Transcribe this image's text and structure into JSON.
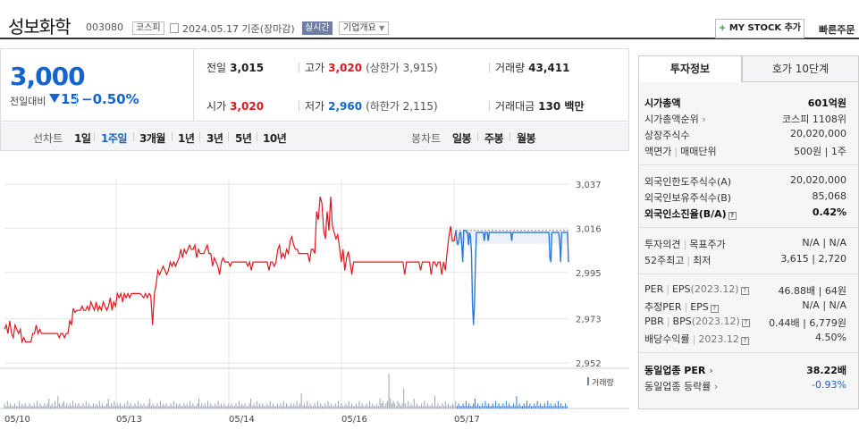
{
  "header": {
    "stock_name": "성보화학",
    "stock_code": "003080",
    "market": "코스피",
    "date": "2024.05.17",
    "date_suffix": "기준(장마감)",
    "realtime": "실시간",
    "corp_info": "기업개요",
    "my_stock": "MY STOCK 추가",
    "quick_order": "빠른주문"
  },
  "price": {
    "current": "3,000",
    "change_label": "전일대비",
    "change": "15",
    "change_pct": "−0.50%",
    "color_down": "#1464ce",
    "color_up": "#e0171f"
  },
  "quotes": {
    "prev_close_label": "전일",
    "prev_close": "3,015",
    "high_label": "고가",
    "high": "3,020",
    "upper_limit": "(상한가 3,915)",
    "volume_label": "거래량",
    "volume": "43,411",
    "open_label": "시가",
    "open": "3,020",
    "low_label": "저가",
    "low": "2,960",
    "lower_limit": "(하한가 2,115)",
    "amount_label": "거래대금",
    "amount": "130 백만"
  },
  "toolbar": {
    "line_label": "선차트",
    "line_items": [
      "1일",
      "1주일",
      "3개월",
      "1년",
      "3년",
      "5년",
      "10년"
    ],
    "active_index": 1,
    "candle_label": "봉차트",
    "candle_items": [
      "일봉",
      "주봉",
      "월봉"
    ]
  },
  "chart_data": {
    "type": "line",
    "title": "",
    "x_ticks": [
      "05/10",
      "05/13",
      "05/14",
      "05/16",
      "05/17"
    ],
    "y_ticks": [
      3037,
      3016,
      2995,
      2973,
      2952
    ],
    "ylim": [
      2952,
      3037
    ],
    "volume_label": "거래량",
    "series": [
      {
        "color": "#e0171f",
        "values": [
          2968,
          2970,
          2966,
          2972,
          2966,
          2964,
          2970,
          2968,
          2966,
          2968,
          2962,
          2964,
          2962,
          2962,
          2962,
          2962,
          2966,
          2966,
          2970,
          2966,
          2968,
          2966,
          2966,
          2966,
          2966,
          2966,
          2966,
          2966,
          2966,
          2966,
          2966,
          2964,
          2966,
          2966,
          2964,
          2966,
          2966,
          2972,
          2970,
          2978,
          2976,
          2977,
          2977,
          2977,
          2979,
          2977,
          2977,
          2979,
          2977,
          2981,
          2979,
          2977,
          2981,
          2977,
          2979,
          2977,
          2981,
          2979,
          2977,
          2979,
          2983,
          2977,
          2981,
          2979,
          2985,
          2983,
          2985,
          2981,
          2985,
          2983,
          2985,
          2983,
          2985,
          2985,
          2985,
          2985,
          2985,
          2985,
          2984,
          2983,
          2985,
          2983,
          2985,
          2984,
          2970,
          2985,
          2989,
          2996,
          2994,
          2996,
          2998,
          2996,
          2994,
          2996,
          3000,
          2998,
          3000,
          2998,
          3000,
          3002,
          3006,
          3002,
          3006,
          3004,
          3006,
          3008,
          3006,
          3006,
          3008,
          3002,
          3006,
          3004,
          3004,
          3004,
          3006,
          3008,
          3004,
          3004,
          2998,
          3002,
          3000,
          2998,
          2994,
          3000,
          3002,
          3000,
          3000,
          3000,
          2998,
          3000,
          3000,
          3000,
          3000,
          3000,
          3000,
          3000,
          3000,
          3000,
          2998,
          3000,
          2996,
          3000,
          3000,
          3000,
          3000,
          3000,
          3000,
          3000,
          3000,
          3000,
          2996,
          3000,
          3000,
          2998,
          3000,
          3006,
          3008,
          3002,
          3004,
          3002,
          3006,
          3004,
          3010,
          3012,
          3008,
          3006,
          3006,
          3004,
          3004,
          3004,
          3004,
          3004,
          3004,
          3000,
          3006,
          3006,
          3004,
          3024,
          3020,
          3031,
          3028,
          3015,
          3011,
          3024,
          3015,
          3031,
          3017,
          3014,
          3011,
          3013,
          3007,
          3000,
          3006,
          2996,
          3002,
          3005,
          3000,
          2994,
          3000,
          3000,
          3000,
          3000,
          3000,
          3000,
          3000,
          3000,
          3000,
          3000,
          3000,
          3000,
          3000,
          3000,
          3000,
          3000,
          3000,
          3000,
          3000,
          3000,
          3000,
          3000,
          3000,
          3000,
          3000,
          3000,
          3000,
          3000,
          3000,
          2994,
          3000,
          3000,
          3000,
          3000,
          3000,
          3000,
          3000,
          3000,
          2996,
          3000,
          3000,
          3000,
          3000,
          3000,
          2994,
          3000,
          3000,
          2998,
          3000,
          3000,
          2994,
          3000,
          2996,
          3004,
          3012,
          3017,
          3010,
          3010,
          3015
        ]
      },
      {
        "color": "#2f77d6",
        "values": [
          3015,
          3010,
          3008,
          3010,
          3014,
          3014,
          3008,
          3000,
          3015,
          3015,
          3015,
          3014,
          3014,
          3008,
          3014,
          3012,
          3004,
          2980,
          2970,
          2980,
          3000,
          3014,
          3014,
          3014,
          3014,
          3014,
          3014,
          3014,
          3014,
          3010,
          3014,
          3014,
          3014,
          3010,
          3014,
          3014,
          3014,
          3014,
          3014,
          3014,
          3014,
          3014,
          3014,
          3014,
          3014,
          3014,
          3014,
          3014,
          3014,
          3014,
          3014,
          3014,
          3014,
          3014,
          3014,
          3014,
          3014,
          3010,
          3014,
          3014,
          3014,
          3014,
          3014,
          3014,
          3014,
          3014,
          3014,
          3014,
          3014,
          3014,
          3014,
          3014,
          3014,
          3014,
          3014,
          3014,
          3014,
          3014,
          3014,
          3014,
          3014,
          3014,
          3014,
          3014,
          3014,
          3014,
          3014,
          3014,
          3014,
          3014,
          3014,
          3014,
          3014,
          3014,
          3014,
          3014,
          3002,
          3000,
          3014,
          3014,
          3014,
          3014,
          3014,
          3014,
          3014,
          3014,
          3010,
          3000,
          3014,
          3014,
          3014,
          3014,
          3014,
          3014,
          3014,
          3000
        ]
      }
    ],
    "volume_values": [
      2,
      1,
      3,
      1,
      2,
      1,
      1,
      2,
      1,
      1,
      3,
      1,
      2,
      1,
      2,
      1,
      1,
      2,
      1,
      1,
      2,
      1,
      3,
      1,
      2,
      1,
      1,
      2,
      1,
      2,
      4,
      1,
      2,
      1,
      3,
      1,
      5,
      2,
      1,
      2,
      3,
      1,
      2,
      1,
      2,
      1,
      3,
      1,
      2,
      1,
      2,
      1,
      1,
      2,
      1,
      3,
      1,
      2,
      1,
      1,
      2,
      1,
      2,
      1,
      3,
      1,
      2,
      1,
      1,
      2,
      4,
      1,
      2,
      1,
      3,
      1,
      2,
      1,
      2,
      1,
      1,
      2,
      1,
      3,
      1,
      2,
      1,
      1,
      2,
      1,
      3,
      1,
      2,
      1,
      2,
      1,
      1,
      2,
      4,
      1,
      2,
      1,
      1,
      2,
      1,
      3,
      1,
      2,
      1,
      2,
      1,
      1,
      2,
      1,
      3,
      1,
      2,
      1,
      2,
      1,
      1,
      2,
      1,
      2,
      1,
      3,
      1,
      2,
      1,
      1,
      2,
      4,
      1,
      2,
      1,
      2,
      1,
      3,
      1,
      2,
      1,
      1,
      2,
      1,
      3,
      1,
      2,
      1,
      2,
      1,
      1,
      2,
      1,
      2,
      1,
      1,
      2,
      1,
      3,
      1,
      2,
      1,
      2,
      1,
      1,
      2,
      4,
      1,
      2,
      1,
      3,
      1,
      2,
      1,
      2,
      1,
      1,
      2,
      1,
      3,
      1,
      2,
      1,
      1,
      2,
      1,
      2,
      1,
      3,
      1,
      2,
      1,
      1,
      2,
      1,
      2,
      1,
      3,
      1,
      2,
      6,
      1,
      2,
      1,
      3,
      1,
      2,
      1,
      1,
      2,
      1,
      3,
      1,
      2,
      1,
      1,
      2,
      1,
      3,
      1,
      2,
      1,
      1,
      2,
      1,
      3,
      1,
      2,
      1,
      1,
      2,
      1,
      3,
      1,
      2,
      1,
      1,
      2,
      1,
      3,
      1,
      2,
      1,
      1,
      2,
      1,
      3,
      1,
      2,
      1,
      1,
      2,
      1,
      4,
      2,
      3,
      1,
      2,
      3,
      14,
      4,
      2,
      3,
      2,
      1,
      3,
      2,
      1,
      2,
      8,
      2,
      1,
      3,
      1,
      2,
      1,
      4,
      1,
      2,
      1,
      1,
      2,
      1,
      3,
      1,
      2,
      1,
      1,
      2,
      1,
      5,
      1,
      2,
      1,
      1,
      2,
      1,
      3,
      1,
      2,
      1,
      1,
      2,
      1,
      3,
      1,
      2,
      1,
      1,
      2,
      1,
      3,
      1,
      2,
      1,
      1,
      2,
      4,
      1,
      2,
      1,
      1,
      2,
      1,
      3,
      1,
      2,
      1,
      1,
      2,
      1,
      3,
      1,
      2,
      1,
      1,
      2,
      1,
      3,
      1,
      2,
      1,
      1,
      2,
      1,
      5,
      1,
      2,
      1,
      1,
      2,
      1,
      3,
      1,
      2,
      1,
      1,
      2,
      1,
      3,
      1,
      2,
      1,
      1,
      2,
      1,
      3,
      1,
      2,
      1,
      1,
      2,
      1,
      3,
      1,
      2,
      1,
      1,
      2,
      1
    ]
  },
  "right_panel": {
    "tab_invest": "투자정보",
    "tab_hoga": "호가 10단계",
    "rows": {
      "mcap_label": "시가총액",
      "mcap": "601억원",
      "mcap_rank_label": "시가총액순위",
      "mcap_rank": "코스피 1108위",
      "shares_label": "상장주식수",
      "shares": "20,020,000",
      "face_label": "액면가",
      "unit_label": "매매단위",
      "face_unit": "500원 | 1주",
      "foreign_limit_label": "외국인한도주식수(A)",
      "foreign_limit": "20,020,000",
      "foreign_hold_label": "외국인보유주식수(B)",
      "foreign_hold": "85,068",
      "foreign_rate_label": "외국인소진율(B/A)",
      "foreign_rate": "0.42%",
      "opinion_label": "투자의견",
      "target_label": "목표주가",
      "opinion_target": "N/A | N/A",
      "w52_label": "52주최고",
      "w52_low_label": "최저",
      "w52": "3,615 | 2,720",
      "per_label": "PER",
      "eps_label": "EPS",
      "eps_year": "(2023.12)",
      "per_eps": "46.88배 | 64원",
      "est_per_label": "추정PER",
      "est_eps_label": "EPS",
      "est_per_eps": "N/A | N/A",
      "pbr_label": "PBR",
      "bps_label": "BPS",
      "bps_year": "(2023.12)",
      "pbr_bps": "0.44배 | 6,779원",
      "div_label": "배당수익률",
      "div_year": "2023.12",
      "div": "4.50%",
      "sector_per_label": "동일업종 PER",
      "sector_per": "38.22배",
      "sector_rate_label": "동일업종 등락률",
      "sector_rate": "-0.93%"
    }
  }
}
